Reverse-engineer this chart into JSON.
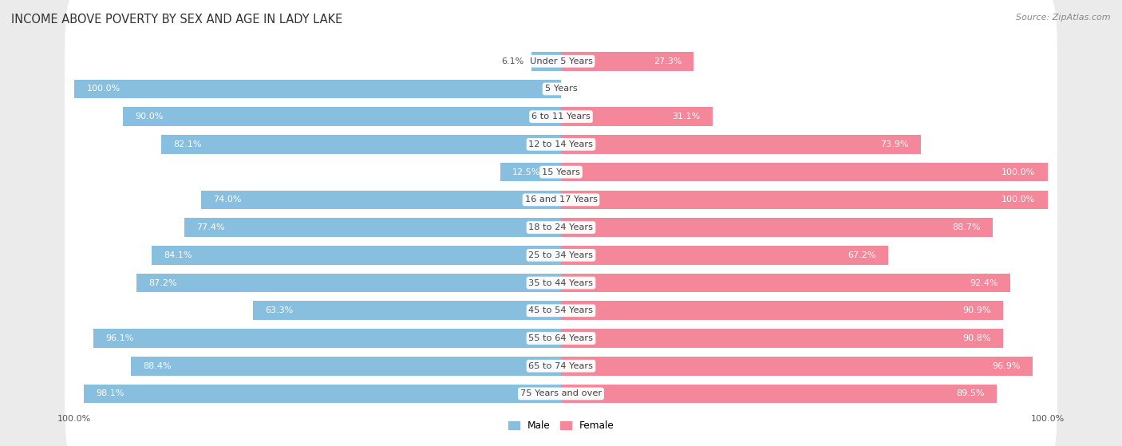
{
  "title": "INCOME ABOVE POVERTY BY SEX AND AGE IN LADY LAKE",
  "source": "Source: ZipAtlas.com",
  "categories": [
    "Under 5 Years",
    "5 Years",
    "6 to 11 Years",
    "12 to 14 Years",
    "15 Years",
    "16 and 17 Years",
    "18 to 24 Years",
    "25 to 34 Years",
    "35 to 44 Years",
    "45 to 54 Years",
    "55 to 64 Years",
    "65 to 74 Years",
    "75 Years and over"
  ],
  "male_values": [
    6.1,
    100.0,
    90.0,
    82.1,
    12.5,
    74.0,
    77.4,
    84.1,
    87.2,
    63.3,
    96.1,
    88.4,
    98.1
  ],
  "female_values": [
    27.3,
    0.0,
    31.1,
    73.9,
    100.0,
    100.0,
    88.7,
    67.2,
    92.4,
    90.9,
    90.8,
    96.9,
    89.5
  ],
  "male_color": "#88bfde",
  "female_color": "#f4879a",
  "male_label": "Male",
  "female_label": "Female",
  "bg_color": "#ebebeb",
  "bar_bg_color": "#ffffff",
  "row_bg_color": "#e0e0e0",
  "max_val": 100.0,
  "title_fontsize": 10.5,
  "label_fontsize": 8.2,
  "value_fontsize": 8.0,
  "tick_fontsize": 8,
  "source_fontsize": 8
}
